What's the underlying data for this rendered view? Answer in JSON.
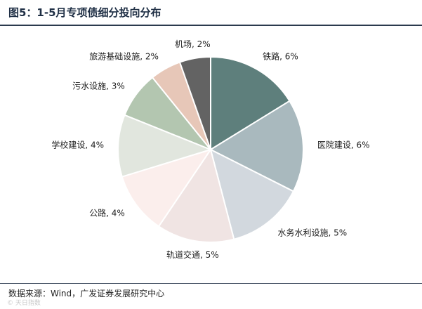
{
  "figure": {
    "title": "图5：1-5月专项债细分投向分布",
    "source": "数据来源：Wind，广发证券发展研究中心",
    "watermark": "©  天日指数"
  },
  "chart_data": {
    "type": "pie",
    "title": "",
    "slices": [
      {
        "label": "铁路, 6%",
        "value": 6,
        "color": "#5e7f7c"
      },
      {
        "label": "医院建设, 6%",
        "value": 6,
        "color": "#a9b9be"
      },
      {
        "label": "水务水利设施, 5%",
        "value": 5,
        "color": "#d2d8de"
      },
      {
        "label": "轨道交通, 5%",
        "value": 5,
        "color": "#f0e4e3"
      },
      {
        "label": "公路, 4%",
        "value": 4,
        "color": "#fbeeec"
      },
      {
        "label": "学校建设, 4%",
        "value": 4,
        "color": "#e1e6de"
      },
      {
        "label": "污水设施, 3%",
        "value": 3,
        "color": "#b3c6b0"
      },
      {
        "label": "旅游基础设施, 2%",
        "value": 2,
        "color": "#e7c7b8"
      },
      {
        "label": "机场, 2%",
        "value": 2,
        "color": "#636363"
      }
    ]
  }
}
